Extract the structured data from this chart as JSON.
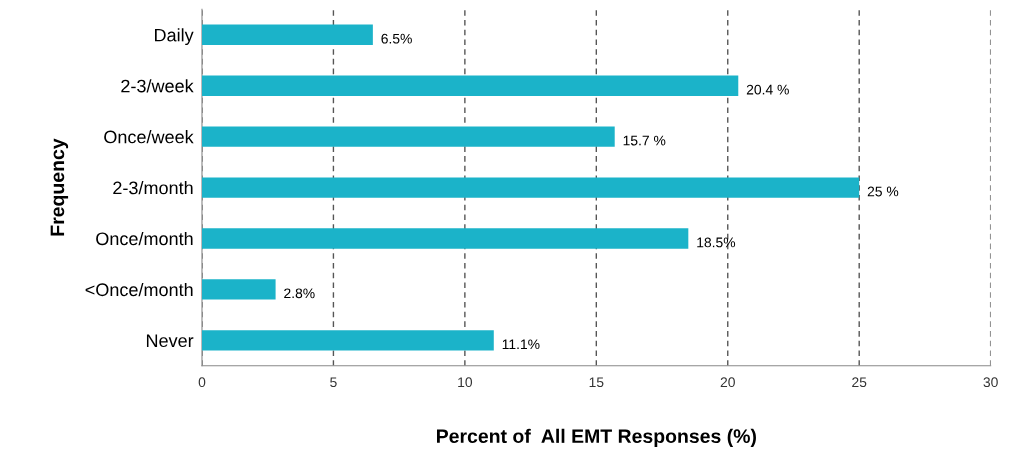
{
  "chart_data": {
    "type": "bar",
    "orientation": "horizontal",
    "categories": [
      "Daily",
      "2-3/week",
      "Once/week",
      "2-3/month",
      "Once/month",
      "<Once/month",
      "Never"
    ],
    "values": [
      6.5,
      20.4,
      15.7,
      25,
      18.5,
      2.8,
      11.1
    ],
    "value_labels": [
      "6.5%",
      "20.4 %",
      "15.7 %",
      "25 %",
      "18.5%",
      "2.8%",
      "11.1%"
    ],
    "color": "#1bb3c9",
    "xlim": [
      0,
      30
    ],
    "xticks": [
      0,
      5,
      10,
      15,
      20,
      25,
      30
    ],
    "xlabel": "Percent of  All EMT Responses (%)",
    "ylabel": "Frequency",
    "grid": "x",
    "line_style": "dashed",
    "legend": false
  }
}
